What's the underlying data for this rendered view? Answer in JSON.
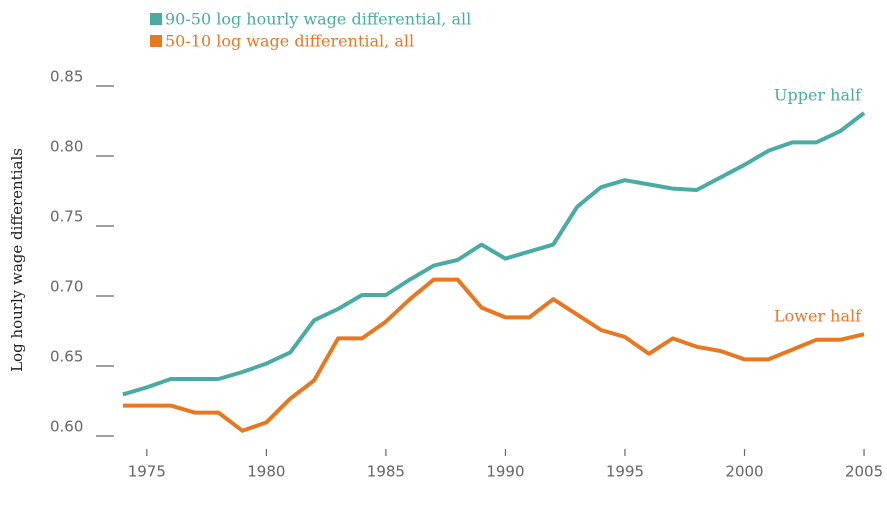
{
  "chart_data": {
    "type": "line",
    "y_label": "Log hourly wage differentials",
    "x": [
      1974,
      1975,
      1976,
      1977,
      1978,
      1979,
      1980,
      1981,
      1982,
      1983,
      1984,
      1985,
      1986,
      1987,
      1988,
      1989,
      1990,
      1991,
      1992,
      1993,
      1994,
      1995,
      1996,
      1997,
      1998,
      1999,
      2000,
      2001,
      2002,
      2003,
      2004,
      2005
    ],
    "series": [
      {
        "name": "90-50 log hourly wage differential, all",
        "end_label": "Upper half",
        "color": "#4aaba3",
        "values": [
          0.629,
          0.634,
          0.64,
          0.64,
          0.64,
          0.645,
          0.651,
          0.659,
          0.682,
          0.69,
          0.7,
          0.7,
          0.711,
          0.721,
          0.725,
          0.736,
          0.726,
          0.731,
          0.736,
          0.763,
          0.777,
          0.782,
          0.779,
          0.776,
          0.775,
          0.784,
          0.793,
          0.803,
          0.809,
          0.809,
          0.817,
          0.83
        ]
      },
      {
        "name": "50-10 log wage differential, all",
        "end_label": "Lower half",
        "color": "#e87722",
        "values": [
          0.621,
          0.621,
          0.621,
          0.616,
          0.616,
          0.603,
          0.609,
          0.626,
          0.639,
          0.669,
          0.669,
          0.681,
          0.697,
          0.711,
          0.711,
          0.691,
          0.684,
          0.684,
          0.697,
          0.686,
          0.675,
          0.67,
          0.658,
          0.669,
          0.663,
          0.66,
          0.654,
          0.654,
          0.661,
          0.668,
          0.668,
          0.672
        ]
      }
    ],
    "xlim": [
      1973,
      2005.5
    ],
    "xticks": [
      1975,
      1980,
      1985,
      1990,
      1995,
      2000,
      2005
    ],
    "ylim": [
      0.585,
      0.865
    ],
    "yticks": [
      {
        "value": 0.6,
        "label": "0.60"
      },
      0.65,
      {
        "value": 0.7,
        "label": "0.70"
      },
      0.75,
      {
        "value": 0.8,
        "label": "0.80"
      },
      0.85
    ]
  }
}
